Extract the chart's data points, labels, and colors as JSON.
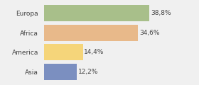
{
  "categories": [
    "Europa",
    "Africa",
    "America",
    "Asia"
  ],
  "values": [
    38.8,
    34.6,
    14.4,
    12.2
  ],
  "labels": [
    "38,8%",
    "34,6%",
    "14,4%",
    "12,2%"
  ],
  "bar_colors": [
    "#a8bf8a",
    "#e8b98a",
    "#f5d57a",
    "#7b8fc0"
  ],
  "background_color": "#f0f0f0",
  "xlim": [
    0,
    46
  ],
  "label_fontsize": 6.5,
  "tick_fontsize": 6.5,
  "bar_height": 0.82
}
